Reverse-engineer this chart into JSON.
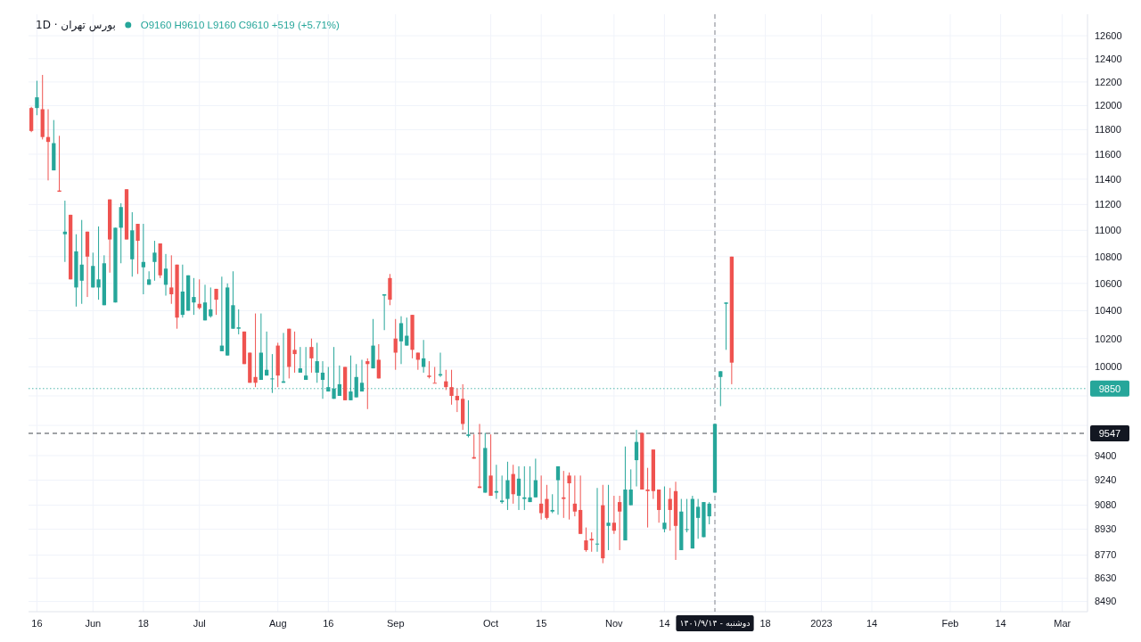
{
  "chart_data": {
    "type": "candlestick",
    "title": "بورس تهران · 1D",
    "subtitle": "O9160 H9610 L9160 C9610 +519 (+5.71%)",
    "categories": [
      null,
      "16",
      null,
      null,
      null,
      null,
      null,
      null,
      null,
      null,
      null,
      "Jun",
      null,
      null,
      null,
      null,
      null,
      null,
      null,
      null,
      "18",
      null,
      null,
      null,
      null,
      null,
      null,
      null,
      null,
      null,
      "Jul",
      null,
      null,
      null,
      null,
      null,
      null,
      null,
      null,
      null,
      null,
      null,
      null,
      null,
      "Aug",
      null,
      null,
      null,
      null,
      null,
      null,
      null,
      null,
      "16",
      null,
      null,
      null,
      null,
      null,
      null,
      null,
      null,
      null,
      null,
      null,
      "Sep",
      null,
      null,
      null,
      null,
      null,
      null,
      null,
      null,
      null,
      null,
      null,
      null,
      null,
      null,
      null,
      null,
      "Oct",
      null,
      null,
      null,
      null,
      null,
      null,
      null,
      null,
      "15",
      null,
      null,
      null,
      null,
      null,
      null,
      null,
      null,
      null,
      null,
      null,
      null,
      "Nov",
      null,
      null,
      null,
      null,
      null,
      null,
      null,
      null,
      "14",
      null,
      null,
      null,
      null,
      null,
      null,
      null,
      null,
      "دوشنبه - ۱۴۰۱/۹/۱۴",
      null,
      null,
      null,
      null,
      null,
      null,
      null,
      null,
      "18",
      null,
      null,
      null,
      null,
      null,
      null,
      null,
      null,
      null,
      "2023",
      null,
      null,
      null,
      null,
      null,
      null,
      null,
      null,
      "14",
      null,
      null,
      null,
      null,
      null,
      null,
      null,
      null,
      null,
      null,
      null,
      null,
      null,
      "Feb",
      null,
      null,
      null,
      null,
      null,
      null,
      null,
      null,
      "14",
      null,
      null,
      null,
      null,
      null,
      null,
      null,
      null,
      null,
      null,
      "Mar",
      null,
      null,
      null,
      null
    ],
    "ohlc": [
      [
        11980,
        11990,
        11780,
        11790
      ],
      [
        11980,
        12210,
        11920,
        12070
      ],
      [
        11970,
        12260,
        11720,
        11740
      ],
      [
        11740,
        11970,
        11390,
        11700
      ],
      [
        11470,
        11880,
        11470,
        11690
      ],
      [
        11310,
        11750,
        11300,
        11300
      ],
      [
        10970,
        11230,
        10760,
        10990
      ],
      [
        11120,
        11120,
        10630,
        10630
      ],
      [
        10570,
        10970,
        10430,
        10840
      ],
      [
        10620,
        11080,
        10450,
        10740
      ],
      [
        10990,
        10990,
        10500,
        10800
      ],
      [
        10570,
        10830,
        10570,
        10730
      ],
      [
        10570,
        11030,
        10480,
        10630
      ],
      [
        10440,
        10810,
        10440,
        10750
      ],
      [
        11240,
        11240,
        10680,
        10930
      ],
      [
        10460,
        11020,
        10460,
        11020
      ],
      [
        11020,
        11210,
        10750,
        11180
      ],
      [
        11320,
        11320,
        10930,
        10930
      ],
      [
        10780,
        11140,
        10650,
        11000
      ],
      [
        11050,
        11050,
        10670,
        10920
      ],
      [
        10720,
        11050,
        10520,
        10760
      ],
      [
        10590,
        10690,
        10590,
        10630
      ],
      [
        10760,
        10920,
        10620,
        10830
      ],
      [
        10900,
        10900,
        10640,
        10660
      ],
      [
        10590,
        10820,
        10510,
        10710
      ],
      [
        10570,
        10810,
        10450,
        10520
      ],
      [
        10740,
        10740,
        10270,
        10350
      ],
      [
        10370,
        10740,
        10350,
        10540
      ],
      [
        10400,
        10660,
        10400,
        10660
      ],
      [
        10460,
        10640,
        10370,
        10500
      ],
      [
        10450,
        10630,
        10410,
        10420
      ],
      [
        10330,
        10590,
        10330,
        10460
      ],
      [
        10360,
        10570,
        10350,
        10410
      ],
      [
        10560,
        10560,
        10370,
        10480
      ],
      [
        10110,
        10650,
        10110,
        10150
      ],
      [
        10080,
        10600,
        10080,
        10570
      ],
      [
        10270,
        10690,
        10270,
        10440
      ],
      [
        10270,
        10410,
        10230,
        10280
      ],
      [
        10250,
        10250,
        10020,
        10020
      ],
      [
        10100,
        10100,
        9890,
        9890
      ],
      [
        9930,
        10380,
        9860,
        9890
      ],
      [
        9910,
        10380,
        9910,
        10100
      ],
      [
        9940,
        10250,
        9940,
        9980
      ],
      [
        9920,
        10090,
        9820,
        9920
      ],
      [
        10150,
        10170,
        9860,
        9940
      ],
      [
        9890,
        10240,
        9890,
        9900
      ],
      [
        10270,
        10270,
        9920,
        10000
      ],
      [
        10120,
        10250,
        9960,
        10090
      ],
      [
        9960,
        10140,
        9960,
        9990
      ],
      [
        9910,
        10140,
        9910,
        9940
      ],
      [
        10140,
        10200,
        9960,
        10060
      ],
      [
        9960,
        10170,
        9890,
        10040
      ],
      [
        9910,
        10040,
        9780,
        9960
      ],
      [
        9830,
        10000,
        9830,
        9860
      ],
      [
        9780,
        10140,
        9780,
        9850
      ],
      [
        9800,
        10010,
        9800,
        9880
      ],
      [
        10000,
        10000,
        9770,
        9770
      ],
      [
        9770,
        10080,
        9770,
        9830
      ],
      [
        9790,
        10020,
        9790,
        9930
      ],
      [
        9830,
        10050,
        9830,
        9890
      ],
      [
        10040,
        10060,
        9710,
        10020
      ],
      [
        9990,
        10340,
        9990,
        10150
      ],
      [
        10050,
        10160,
        9920,
        9920
      ],
      [
        10510,
        10520,
        10260,
        10520
      ],
      [
        10640,
        10670,
        10440,
        10480
      ],
      [
        10200,
        10340,
        9980,
        10100
      ],
      [
        10180,
        10360,
        10020,
        10310
      ],
      [
        10150,
        10350,
        10150,
        10220
      ],
      [
        10370,
        10370,
        10060,
        10120
      ],
      [
        10100,
        10100,
        9980,
        10050
      ],
      [
        10000,
        10190,
        9960,
        10060
      ],
      [
        9940,
        10040,
        9920,
        9930
      ],
      [
        9890,
        10000,
        9890,
        9890
      ],
      [
        9940,
        10100,
        9930,
        9950
      ],
      [
        9900,
        9980,
        9840,
        9860
      ],
      [
        9860,
        9980,
        9740,
        9800
      ],
      [
        9800,
        9850,
        9690,
        9770
      ],
      [
        9780,
        9880,
        9570,
        9610
      ],
      [
        9530,
        9770,
        9520,
        9540
      ],
      [
        9390,
        9540,
        9380,
        9380
      ],
      [
        9200,
        9610,
        9190,
        9190
      ],
      [
        9160,
        9550,
        9160,
        9450
      ],
      [
        9270,
        9540,
        9140,
        9140
      ],
      [
        9160,
        9340,
        9120,
        9170
      ],
      [
        9100,
        9270,
        9090,
        9110
      ],
      [
        9120,
        9360,
        9050,
        9240
      ],
      [
        9280,
        9340,
        9090,
        9150
      ],
      [
        9140,
        9330,
        9050,
        9250
      ],
      [
        9120,
        9330,
        9050,
        9130
      ],
      [
        9100,
        9330,
        9100,
        9130
      ],
      [
        9130,
        9380,
        9130,
        9240
      ],
      [
        9090,
        9270,
        8990,
        9030
      ],
      [
        9120,
        9210,
        8990,
        9000
      ],
      [
        9040,
        9150,
        9030,
        9050
      ],
      [
        9240,
        9330,
        9020,
        9330
      ],
      [
        9130,
        9300,
        9000,
        9120
      ],
      [
        9270,
        9290,
        8990,
        9220
      ],
      [
        9090,
        9270,
        9010,
        9040
      ],
      [
        9050,
        9270,
        8900,
        8900
      ],
      [
        8860,
        8940,
        8790,
        8800
      ],
      [
        8870,
        8910,
        8790,
        8860
      ],
      [
        8840,
        9190,
        8790,
        8840
      ],
      [
        9080,
        9210,
        8720,
        8750
      ],
      [
        8950,
        9210,
        8800,
        8970
      ],
      [
        8970,
        9140,
        8900,
        8920
      ],
      [
        9100,
        9140,
        8800,
        9040
      ],
      [
        8860,
        9460,
        8860,
        9180
      ],
      [
        9080,
        9310,
        9080,
        9180
      ],
      [
        9370,
        9570,
        9200,
        9490
      ],
      [
        9550,
        9550,
        9180,
        9180
      ],
      [
        9180,
        9320,
        8940,
        9170
      ],
      [
        9440,
        9440,
        9120,
        9170
      ],
      [
        9180,
        9180,
        8970,
        9050
      ],
      [
        8930,
        9200,
        8910,
        8970
      ],
      [
        9120,
        9190,
        8920,
        9050
      ],
      [
        9170,
        9230,
        8740,
        8950
      ],
      [
        8800,
        9120,
        8800,
        9040
      ],
      [
        8930,
        9120,
        8910,
        8930
      ],
      [
        8810,
        9140,
        8810,
        9120
      ],
      [
        9000,
        9120,
        8870,
        9070
      ],
      [
        8880,
        9100,
        8880,
        9100
      ],
      [
        9010,
        9100,
        8960,
        9090
      ],
      [
        9160,
        9610,
        9160,
        9610
      ],
      [
        9930,
        9970,
        9730,
        9970
      ],
      [
        10450,
        10460,
        10120,
        10460
      ],
      [
        10800,
        10800,
        9880,
        10030
      ],
      null,
      null,
      null,
      null,
      null,
      null,
      null,
      null,
      null,
      null,
      null,
      null,
      null,
      null,
      null,
      null,
      null,
      null,
      null,
      null,
      null,
      null,
      null,
      null,
      null,
      null,
      null,
      null,
      null,
      null,
      null,
      null,
      null,
      null,
      null,
      null,
      null,
      null,
      null,
      null,
      null,
      null,
      null,
      null,
      null,
      null,
      null,
      null,
      null,
      null,
      null,
      null,
      null,
      null,
      null,
      null,
      null,
      null,
      null,
      null,
      null,
      null,
      null
    ],
    "colors": [
      "#ef5350",
      "#26a69a",
      "#ef5350",
      "#ef5350",
      "#26a69a",
      "#ef5350",
      "#26a69a",
      "#ef5350",
      "#26a69a",
      "#26a69a",
      "#ef5350",
      "#26a69a",
      "#26a69a",
      "#26a69a",
      "#ef5350",
      "#26a69a",
      "#26a69a",
      "#ef5350",
      "#26a69a",
      "#ef5350",
      "#26a69a",
      "#26a69a",
      "#26a69a",
      "#ef5350",
      "#26a69a",
      "#ef5350",
      "#ef5350",
      "#26a69a",
      "#26a69a",
      "#26a69a",
      "#ef5350",
      "#26a69a",
      "#26a69a",
      "#ef5350",
      "#26a69a",
      "#26a69a",
      "#26a69a",
      "#26a69a",
      "#ef5350",
      "#ef5350",
      "#ef5350",
      "#26a69a",
      "#26a69a",
      "#26a69a",
      "#ef5350",
      "#26a69a",
      "#ef5350",
      "#ef5350",
      "#26a69a",
      "#26a69a",
      "#ef5350",
      "#26a69a",
      "#26a69a",
      "#26a69a",
      "#26a69a",
      "#26a69a",
      "#ef5350",
      "#26a69a",
      "#26a69a",
      "#26a69a",
      "#ef5350",
      "#26a69a",
      "#ef5350",
      "#26a69a",
      "#ef5350",
      "#ef5350",
      "#26a69a",
      "#26a69a",
      "#ef5350",
      "#ef5350",
      "#26a69a",
      "#ef5350",
      "#ef5350",
      "#26a69a",
      "#ef5350",
      "#ef5350",
      "#ef5350",
      "#ef5350",
      "#26a69a",
      "#ef5350",
      "#ef5350",
      "#26a69a",
      "#ef5350",
      "#26a69a",
      "#26a69a",
      "#26a69a",
      "#ef5350",
      "#26a69a",
      "#26a69a",
      "#26a69a",
      "#26a69a",
      "#ef5350",
      "#ef5350",
      "#26a69a",
      "#26a69a",
      "#ef5350",
      "#ef5350",
      "#ef5350",
      "#ef5350",
      "#ef5350",
      "#ef5350",
      "#26a69a",
      "#ef5350",
      "#26a69a",
      "#ef5350",
      "#ef5350",
      "#26a69a",
      "#26a69a",
      "#26a69a",
      "#ef5350",
      "#ef5350",
      "#ef5350",
      "#ef5350",
      "#26a69a",
      "#ef5350",
      "#ef5350",
      "#26a69a",
      "#26a69a",
      "#26a69a",
      "#26a69a",
      "#26a69a",
      "#26a69a",
      "#26a69a",
      "#26a69a",
      "#26a69a",
      "#ef5350",
      null,
      null,
      null,
      null,
      null,
      null,
      null,
      null,
      null,
      null,
      null,
      null,
      null,
      null,
      null,
      null,
      null,
      null,
      null,
      null,
      null,
      null,
      null,
      null,
      null,
      null,
      null,
      null,
      null,
      null,
      null,
      null,
      null,
      null,
      null,
      null,
      null,
      null,
      null,
      null,
      null,
      null,
      null,
      null,
      null,
      null,
      null,
      null,
      null,
      null,
      null,
      null,
      null,
      null,
      null,
      null,
      null,
      null,
      null,
      null,
      null,
      null,
      null
    ],
    "ylim": [
      8430,
      12790
    ],
    "yticks": [
      8490,
      8630,
      8770,
      8930,
      9080,
      9240,
      9400,
      {
        "value": 9600,
        "label": null
      },
      {
        "value": 9800,
        "label": null
      },
      10000,
      10200,
      10400,
      10600,
      10800,
      11000,
      11200,
      11400,
      11600,
      11800,
      12000,
      12200,
      12400,
      12600
    ],
    "log": "y",
    "grid": true,
    "ref_lines": [
      {
        "axis": "x",
        "value": "دوشنبه - ۱۴۰۱/۹/۱۴",
        "line_style": "dashed",
        "color": "#131722"
      },
      {
        "axis": "y",
        "value": 9850,
        "label": "9850",
        "line_style": "dotted",
        "color": "#26a69a"
      },
      {
        "axis": "y",
        "value": 9547,
        "label": "9547",
        "line_style": "dashed",
        "color": "#131722"
      }
    ]
  }
}
